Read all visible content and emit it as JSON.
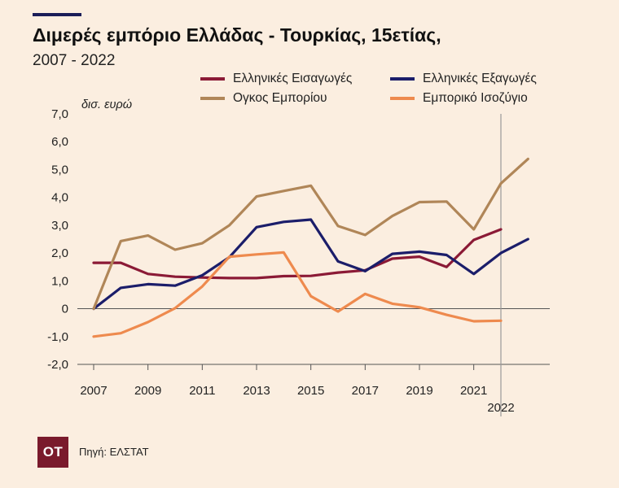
{
  "header": {
    "title": "Διμερές εμπόριο Ελλάδας - Τουρκίας, 15ετίας,",
    "subtitle": "2007 - 2022"
  },
  "footer": {
    "logo": "OT",
    "source": "Πηγή: ΕΛΣΤΑΤ"
  },
  "colors": {
    "background": "#fbeee0",
    "title_rule": "#1b1d58",
    "logo_bg": "#7a1a2c"
  },
  "chart_data": {
    "type": "line",
    "title": "Διμερές εμπόριο Ελλάδας - Τουρκίας, 15ετίας,",
    "subtitle": "2007 - 2022",
    "ylabel": "δισ. ευρώ",
    "xlabel": "",
    "x": [
      2007,
      2008,
      2009,
      2010,
      2011,
      2012,
      2013,
      2014,
      2015,
      2016,
      2017,
      2018,
      2019,
      2020,
      2021,
      2022,
      2023
    ],
    "x_tick_labels": [
      "2007",
      "2009",
      "2011",
      "2013",
      "2015",
      "2017",
      "2019",
      "2021"
    ],
    "x_tick_values": [
      2007,
      2009,
      2011,
      2013,
      2015,
      2017,
      2019,
      2021
    ],
    "highlight_x_label": "2022",
    "highlight_x": 2022,
    "y_tick_labels": [
      "7,0",
      "6,0",
      "5,0",
      "4,0",
      "3,0",
      "2,0",
      "1,0",
      "0",
      "-1,0",
      "-2,0"
    ],
    "y_tick_values": [
      7,
      6,
      5,
      4,
      3,
      2,
      1,
      0,
      -1,
      -2
    ],
    "ylim": [
      -2,
      7
    ],
    "grid": false,
    "legend_position": "top",
    "series": [
      {
        "name": "Ελληνικές Εισαγωγές",
        "color": "#8b1a36",
        "values": [
          1.65,
          1.65,
          1.25,
          1.15,
          1.12,
          1.1,
          1.1,
          1.17,
          1.18,
          1.3,
          1.38,
          1.8,
          1.87,
          1.5,
          2.47,
          2.85,
          null
        ]
      },
      {
        "name": "Ελληνικές Εξαγωγές",
        "color": "#1b1d6a",
        "values": [
          0.0,
          0.75,
          0.88,
          0.83,
          1.2,
          1.85,
          2.93,
          3.12,
          3.2,
          1.7,
          1.35,
          1.97,
          2.05,
          1.93,
          1.25,
          2.0,
          2.5
        ]
      },
      {
        "name": "Ογκος Εμπορίου",
        "color": "#b08658",
        "values": [
          0.0,
          2.43,
          2.63,
          2.12,
          2.35,
          3.0,
          4.03,
          4.23,
          4.42,
          2.97,
          2.65,
          3.33,
          3.83,
          3.85,
          2.85,
          4.5,
          5.38
        ]
      },
      {
        "name": "Εμπορικό Ισοζύγιο",
        "color": "#ee8a4e",
        "values": [
          -1.0,
          -0.88,
          -0.48,
          0.02,
          0.8,
          1.87,
          1.95,
          2.02,
          0.45,
          -0.1,
          0.53,
          0.18,
          0.05,
          -0.22,
          -0.45,
          -0.43,
          null
        ]
      }
    ]
  }
}
